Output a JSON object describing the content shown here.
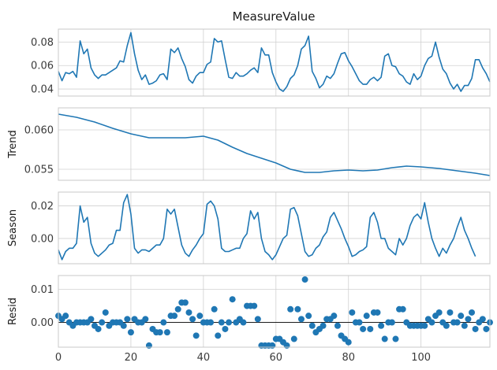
{
  "figure": {
    "title": "MeasureValue"
  },
  "colors": {
    "series": "#1f77b4",
    "grid": "#d0d0d0",
    "spine": "#c8c8c8",
    "zero_line": "#000000"
  },
  "chart_data": [
    {
      "type": "line",
      "title": "MeasureValue",
      "xlabel": "",
      "ylabel": "",
      "xlim": [
        0,
        119
      ],
      "ylim": [
        0.034,
        0.091
      ],
      "x_ticks": [
        0,
        20,
        40,
        60,
        80,
        100
      ],
      "y_ticks": [
        0.04,
        0.06,
        0.08
      ],
      "y_tick_labels": [
        "0.04",
        "0.06",
        "0.08"
      ],
      "grid": true,
      "x_start": 0,
      "values": [
        0.055,
        0.047,
        0.054,
        0.053,
        0.055,
        0.05,
        0.081,
        0.07,
        0.074,
        0.058,
        0.052,
        0.049,
        0.052,
        0.052,
        0.054,
        0.056,
        0.058,
        0.064,
        0.063,
        0.077,
        0.088,
        0.07,
        0.056,
        0.048,
        0.052,
        0.044,
        0.045,
        0.047,
        0.052,
        0.053,
        0.048,
        0.074,
        0.071,
        0.075,
        0.066,
        0.059,
        0.048,
        0.045,
        0.051,
        0.054,
        0.054,
        0.061,
        0.063,
        0.083,
        0.08,
        0.081,
        0.065,
        0.05,
        0.049,
        0.054,
        0.051,
        0.051,
        0.053,
        0.056,
        0.058,
        0.054,
        0.075,
        0.069,
        0.069,
        0.054,
        0.046,
        0.04,
        0.038,
        0.042,
        0.049,
        0.052,
        0.06,
        0.074,
        0.077,
        0.085,
        0.055,
        0.049,
        0.041,
        0.044,
        0.051,
        0.049,
        0.053,
        0.062,
        0.07,
        0.071,
        0.064,
        0.059,
        0.053,
        0.047,
        0.044,
        0.044,
        0.048,
        0.05,
        0.047,
        0.05,
        0.068,
        0.07,
        0.06,
        0.059,
        0.053,
        0.051,
        0.046,
        0.044,
        0.053,
        0.048,
        0.051,
        0.06,
        0.066,
        0.068,
        0.08,
        0.067,
        0.057,
        0.053,
        0.045,
        0.04,
        0.044,
        0.038,
        0.043,
        0.043,
        0.049,
        0.065,
        0.065,
        0.058,
        0.053,
        0.046
      ]
    },
    {
      "type": "line",
      "title": "",
      "xlabel": "",
      "ylabel": "Trend",
      "xlim": [
        0,
        119
      ],
      "ylim": [
        0.0536,
        0.0628
      ],
      "x_ticks": [
        0,
        20,
        40,
        60,
        80,
        100
      ],
      "y_ticks": [
        0.055,
        0.06
      ],
      "y_tick_labels": [
        "0.055",
        "0.060"
      ],
      "grid": true,
      "points": [
        [
          0,
          0.062
        ],
        [
          5,
          0.0616
        ],
        [
          10,
          0.061
        ],
        [
          15,
          0.0602
        ],
        [
          20,
          0.0595
        ],
        [
          25,
          0.059
        ],
        [
          30,
          0.059
        ],
        [
          35,
          0.059
        ],
        [
          40,
          0.0592
        ],
        [
          44,
          0.0587
        ],
        [
          48,
          0.0578
        ],
        [
          52,
          0.057
        ],
        [
          56,
          0.0564
        ],
        [
          60,
          0.0558
        ],
        [
          64,
          0.055
        ],
        [
          68,
          0.0546
        ],
        [
          72,
          0.0546
        ],
        [
          76,
          0.0548
        ],
        [
          80,
          0.0549
        ],
        [
          84,
          0.0548
        ],
        [
          88,
          0.0549
        ],
        [
          92,
          0.0552
        ],
        [
          96,
          0.0554
        ],
        [
          100,
          0.0553
        ],
        [
          105,
          0.0551
        ],
        [
          110,
          0.0548
        ],
        [
          115,
          0.0545
        ],
        [
          119,
          0.0542
        ]
      ]
    },
    {
      "type": "line",
      "title": "",
      "xlabel": "",
      "ylabel": "Season",
      "xlim": [
        0,
        119
      ],
      "ylim": [
        -0.0155,
        0.0285
      ],
      "x_ticks": [
        0,
        20,
        40,
        60,
        80,
        100
      ],
      "y_ticks": [
        0.0,
        0.02
      ],
      "y_tick_labels": [
        "0.00",
        "0.02"
      ],
      "grid": true,
      "x_start": 0,
      "values": [
        -0.007,
        -0.013,
        -0.008,
        -0.006,
        -0.006,
        -0.003,
        0.02,
        0.01,
        0.013,
        -0.003,
        -0.009,
        -0.011,
        -0.009,
        -0.007,
        -0.004,
        -0.003,
        0.005,
        0.005,
        0.022,
        0.027,
        0.015,
        -0.006,
        -0.009,
        -0.007,
        -0.007,
        -0.008,
        -0.006,
        -0.004,
        -0.004,
        0.0,
        0.018,
        0.015,
        0.018,
        0.007,
        -0.004,
        -0.009,
        -0.011,
        -0.007,
        -0.004,
        0.0,
        0.003,
        0.021,
        0.023,
        0.02,
        0.012,
        -0.006,
        -0.008,
        -0.008,
        -0.007,
        -0.006,
        -0.006,
        0.0,
        0.003,
        0.017,
        0.012,
        0.016,
        0.0,
        -0.008,
        -0.01,
        -0.013,
        -0.01,
        -0.005,
        0.0,
        0.002,
        0.018,
        0.019,
        0.014,
        0.003,
        -0.008,
        -0.011,
        -0.01,
        -0.006,
        -0.004,
        0.001,
        0.004,
        0.013,
        0.016,
        0.011,
        0.006,
        0.0,
        -0.005,
        -0.011,
        -0.01,
        -0.008,
        -0.007,
        -0.005,
        0.013,
        0.016,
        0.01,
        0.0,
        0.0,
        -0.006,
        -0.008,
        -0.01,
        0.0,
        -0.004,
        0.0,
        0.008,
        0.013,
        0.015,
        0.012,
        0.022,
        0.01,
        0.0,
        -0.006,
        -0.011,
        -0.006,
        -0.009,
        -0.004,
        0.0,
        0.007,
        0.013,
        0.005,
        0.0,
        -0.006,
        -0.011
      ]
    },
    {
      "type": "scatter",
      "title": "",
      "xlabel": "",
      "ylabel": "Resid",
      "xlim": [
        0,
        119
      ],
      "ylim": [
        -0.0075,
        0.0142
      ],
      "x_ticks": [
        0,
        20,
        40,
        60,
        80,
        100
      ],
      "x_tick_labels": [
        "0",
        "20",
        "40",
        "60",
        "80",
        "100"
      ],
      "y_ticks": [
        0.0,
        0.01
      ],
      "y_tick_labels": [
        "0.00",
        "0.01"
      ],
      "grid": true,
      "zero_line": true,
      "x_start": 0,
      "values": [
        0.002,
        0.001,
        0.002,
        0.0,
        -0.001,
        0.0,
        0.0,
        0.0,
        0.0,
        0.001,
        -0.001,
        -0.002,
        0.0,
        0.003,
        -0.001,
        0.0,
        0.0,
        0.0,
        -0.001,
        0.001,
        -0.003,
        0.001,
        0.0,
        0.0,
        0.001,
        -0.007,
        -0.002,
        -0.003,
        -0.003,
        0.0,
        -0.003,
        0.002,
        0.002,
        0.004,
        0.006,
        0.006,
        0.003,
        0.001,
        -0.004,
        0.002,
        0.0,
        0.0,
        0.0,
        0.004,
        -0.004,
        0.0,
        -0.002,
        0.0,
        0.007,
        0.0,
        0.001,
        0.0,
        0.005,
        0.005,
        0.005,
        0.001,
        -0.007,
        -0.007,
        -0.007,
        -0.007,
        -0.005,
        -0.005,
        -0.006,
        -0.007,
        0.004,
        -0.005,
        0.004,
        0.001,
        0.013,
        0.002,
        -0.001,
        -0.003,
        -0.002,
        -0.001,
        0.001,
        0.001,
        0.002,
        -0.001,
        -0.004,
        -0.005,
        -0.006,
        0.003,
        0.0,
        0.0,
        -0.002,
        0.002,
        -0.002,
        0.003,
        0.003,
        -0.001,
        -0.005,
        0.0,
        0.0,
        -0.005,
        0.004,
        0.004,
        0.0,
        -0.001,
        -0.001,
        -0.001,
        -0.001,
        -0.001,
        0.001,
        0.0,
        0.002,
        0.003,
        0.0,
        -0.001,
        0.003,
        0.0,
        0.0,
        0.002,
        -0.001,
        0.001,
        0.003,
        -0.002,
        0.0,
        0.001,
        -0.002,
        0.0
      ]
    }
  ]
}
